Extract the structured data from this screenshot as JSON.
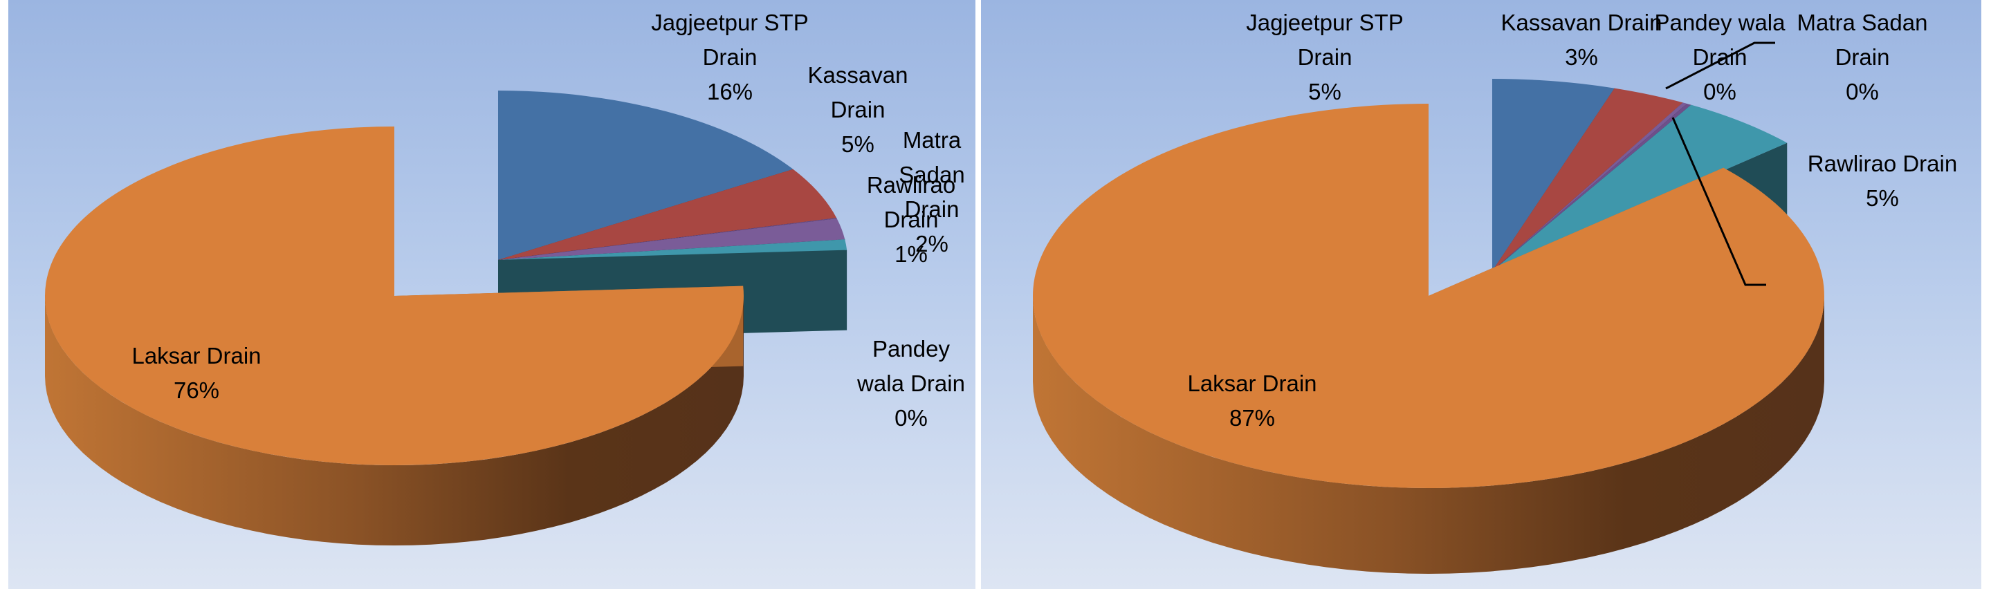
{
  "chart_data": [
    {
      "type": "pie",
      "variant": "3d-exploded",
      "title": "",
      "categories": [
        "Jagjeetpur STP Drain",
        "Kassavan Drain",
        "Pandey wala Drain",
        "Matra Sadan Drain",
        "Rawlirao Drain",
        "Laksar Drain"
      ],
      "values": [
        16,
        5,
        0,
        2,
        1,
        76
      ],
      "labels": [
        {
          "lines": [
            "Jagjeetpur STP",
            "Drain",
            "16%"
          ]
        },
        {
          "lines": [
            "Kassavan",
            "Drain",
            "5%"
          ]
        },
        {
          "lines": [
            "Pandey",
            "wala Drain",
            "0%"
          ]
        },
        {
          "lines": [
            "Matra",
            "Sadan",
            "Drain",
            "2%"
          ]
        },
        {
          "lines": [
            "Rawlirao",
            "Drain",
            "1%"
          ]
        },
        {
          "lines": [
            "Laksar Drain",
            "76%"
          ]
        }
      ],
      "colors": [
        "#4471a5",
        "#a84742",
        "#6e4f8a",
        "#7a5c98",
        "#3f97ab",
        "#d9803a"
      ],
      "legend": "none",
      "data_labels": "category name and percentage"
    },
    {
      "type": "pie",
      "variant": "3d-exploded",
      "title": "",
      "categories": [
        "Jagjeetpur STP Drain",
        "Kassavan Drain",
        "Pandey wala Drain",
        "Matra Sadan Drain",
        "Rawlirao Drain",
        "Laksar Drain"
      ],
      "values": [
        5,
        3,
        0,
        0,
        5,
        87
      ],
      "labels": [
        {
          "lines": [
            "Jagjeetpur STP",
            "Drain",
            "5%"
          ]
        },
        {
          "lines": [
            "Kassavan Drain",
            "3%"
          ]
        },
        {
          "lines": [
            "Pandey wala",
            "Drain",
            "0%"
          ]
        },
        {
          "lines": [
            "Matra Sadan",
            "Drain",
            "0%"
          ]
        },
        {
          "lines": [
            "Rawlirao Drain",
            "5%"
          ]
        },
        {
          "lines": [
            "Laksar Drain",
            "87%"
          ]
        }
      ],
      "colors": [
        "#4471a5",
        "#a84742",
        "#7a5c98",
        "#6e4f8a",
        "#3f97ab",
        "#d9803a"
      ],
      "legend": "none",
      "data_labels": "category name and percentage"
    }
  ]
}
